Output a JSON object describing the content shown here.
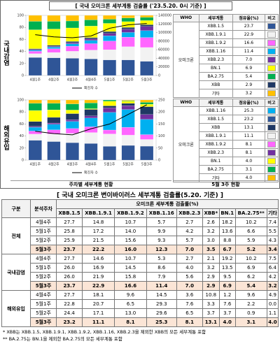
{
  "header": {
    "title": "[ 국내 오미크론 세부계통 검출률 ('23.5.20. 0시 기준) ]"
  },
  "panels": [
    {
      "label": "국내감염"
    },
    {
      "label": "해외유입"
    }
  ],
  "chart_data": [
    {
      "type": "bar",
      "stacked": true,
      "categories": [
        "4월1주",
        "4월2주",
        "4월3주",
        "4월4주",
        "5월1주",
        "5월2주",
        "5월3주"
      ],
      "ylim": [
        0,
        100
      ],
      "yticks": [
        0,
        20,
        40,
        60,
        80,
        100
      ],
      "y2lim": [
        0,
        140000
      ],
      "y2ticks": [
        0,
        20000,
        40000,
        60000,
        80000,
        100000,
        120000,
        140000
      ],
      "series": [
        {
          "color": "#2f5597",
          "values": [
            30.1,
            29.5,
            28.6,
            27.7,
            26.0,
            26.0,
            23.7
          ]
        },
        {
          "color": "#f2f2f2",
          "values": [
            6.2,
            8.8,
            11.7,
            14.6,
            16.9,
            21.9,
            22.9
          ]
        },
        {
          "color": "#ff66ff",
          "values": [
            4.1,
            6.3,
            8.5,
            10.7,
            14.5,
            15.8,
            16.6
          ]
        },
        {
          "color": "#00b0f0",
          "values": [
            1.8,
            2.6,
            3.9,
            5.3,
            8.6,
            7.9,
            11.4
          ]
        },
        {
          "color": "#7030a0",
          "values": [
            0.9,
            1.4,
            2.0,
            2.7,
            4.0,
            5.6,
            7.0
          ]
        },
        {
          "color": "#1f3864",
          "values": [
            1.5,
            1.8,
            2.0,
            2.1,
            3.2,
            2.9,
            2.9
          ]
        },
        {
          "color": "#ffff00",
          "values": [
            31.5,
            26.9,
            22.4,
            19.2,
            13.5,
            9.5,
            6.9
          ]
        },
        {
          "color": "#00b050",
          "values": [
            14.0,
            12.8,
            11.6,
            10.2,
            6.9,
            6.2,
            5.4
          ]
        },
        {
          "color": "#ffc000",
          "values": [
            9.9,
            9.9,
            9.3,
            7.5,
            6.4,
            4.2,
            3.2
          ]
        },
        {
          "type": "line",
          "axis": "y2",
          "name": "확진자 수",
          "color": "#000000",
          "values": [
            95000,
            90000,
            88000,
            92000,
            110000,
            118000,
            121000
          ]
        }
      ]
    },
    {
      "type": "bar",
      "stacked": true,
      "categories": [
        "4월1주",
        "4월2주",
        "4월3주",
        "4월4주",
        "5월1주",
        "5월2주",
        "5월3주"
      ],
      "ylim": [
        0,
        100
      ],
      "yticks": [
        0,
        20,
        40,
        60,
        80,
        100
      ],
      "y2lim": [
        0,
        250
      ],
      "y2ticks": [
        0,
        50,
        100,
        150,
        200,
        250
      ],
      "series": [
        {
          "color": "#2f5597",
          "values": [
            33.0,
            30.8,
            29.0,
            27.7,
            22.8,
            24.4,
            23.2
          ]
        },
        {
          "color": "#f2f2f2",
          "values": [
            10.2,
            12.5,
            15.3,
            18.1,
            20.7,
            17.1,
            11.1
          ]
        },
        {
          "color": "#ff66ff",
          "values": [
            5.1,
            7.0,
            8.2,
            9.6,
            6.5,
            13.0,
            8.1
          ]
        },
        {
          "color": "#00b0f0",
          "values": [
            6.3,
            9.1,
            11.8,
            14.5,
            29.3,
            29.6,
            25.3
          ]
        },
        {
          "color": "#7030a0",
          "values": [
            1.5,
            2.2,
            2.9,
            3.6,
            7.6,
            6.5,
            8.1
          ]
        },
        {
          "color": "#1f3864",
          "values": [
            8.0,
            9.4,
            10.1,
            10.8,
            3.3,
            3.7,
            13.1
          ]
        },
        {
          "color": "#ffff00",
          "values": [
            18.4,
            12.6,
            5.9,
            1.2,
            7.6,
            3.7,
            4.0
          ]
        },
        {
          "color": "#00b050",
          "values": [
            12.0,
            10.9,
            10.3,
            9.6,
            2.2,
            0.9,
            3.1
          ]
        },
        {
          "color": "#ffc000",
          "values": [
            5.5,
            5.5,
            6.5,
            4.9,
            0.0,
            1.1,
            4.0
          ]
        },
        {
          "type": "line",
          "axis": "y2",
          "name": "확진자 수",
          "color": "#000000",
          "values": [
            120,
            110,
            105,
            130,
            150,
            190,
            230
          ]
        }
      ]
    }
  ],
  "share_tables": [
    {
      "columns": [
        "WHO",
        "세부계통",
        "점유율(%)",
        "비고"
      ],
      "who": "오미크론",
      "rows": [
        {
          "lineage": "XBB.1.5",
          "share": "23.7",
          "color": "#2f5597"
        },
        {
          "lineage": "XBB.1.9.1",
          "share": "22.9",
          "color": "#f2f2f2"
        },
        {
          "lineage": "XBB.1.9.2",
          "share": "16.6",
          "color": "#ff66ff"
        },
        {
          "lineage": "XBB.1.16",
          "share": "11.4",
          "color": "#00b0f0"
        },
        {
          "lineage": "XBB.2.3",
          "share": "7.0",
          "color": "#7030a0"
        },
        {
          "lineage": "BN.1",
          "share": "6.9",
          "color": "#ffff00"
        },
        {
          "lineage": "BA.2.75",
          "share": "5.4",
          "color": "#00b050"
        },
        {
          "lineage": "XBB",
          "share": "2.9",
          "color": "#1f3864"
        },
        {
          "lineage": "기타",
          "share": "3.2",
          "color": "#ffc000"
        }
      ]
    },
    {
      "columns": [
        "WHO",
        "세부계통",
        "점유율(%)",
        "비고"
      ],
      "who": "오미크론",
      "rows": [
        {
          "lineage": "XBB.1.16",
          "share": "25.3",
          "color": "#00b0f0"
        },
        {
          "lineage": "XBB.1.5",
          "share": "23.2",
          "color": "#2f5597"
        },
        {
          "lineage": "XBB",
          "share": "13.1",
          "color": "#1f3864"
        },
        {
          "lineage": "XBB.1.9.1",
          "share": "11.1",
          "color": "#f2f2f2"
        },
        {
          "lineage": "XBB.1.9.2",
          "share": "8.1",
          "color": "#ff66ff"
        },
        {
          "lineage": "XBB.2.3",
          "share": "8.1",
          "color": "#7030a0"
        },
        {
          "lineage": "BN.1",
          "share": "4.0",
          "color": "#ffff00"
        },
        {
          "lineage": "BA.2.75",
          "share": "3.1",
          "color": "#00b050"
        },
        {
          "lineage": "기타",
          "share": "4.0",
          "color": "#ffc000"
        }
      ]
    }
  ],
  "captions": [
    "주차별 세부계통 현황",
    "5월 3주 현황"
  ],
  "table": {
    "title": "[ 국내 오미크론 변이바이러스 세부계통 검출률(5.20. 기준) ]",
    "group_header": "구분",
    "week_header": "분석주차",
    "span_header": "오미크론 세부계통 검출률(%)",
    "columns": [
      "XBB.1.5",
      "XBB.1.9.1",
      "XBB.1.9.2",
      "XBB.1.16",
      "XBB.2.3",
      "XBB*",
      "BN.1",
      "BA.2.75**",
      "기타"
    ],
    "groups": [
      {
        "name": "전체",
        "rows": [
          {
            "week": "4월4주",
            "values": [
              "27.7",
              "14.8",
              "10.7",
              "5.7",
              "2.7",
              "2.6",
              "18.2",
              "10.2",
              "7.4"
            ]
          },
          {
            "week": "5월1주",
            "values": [
              "25.8",
              "17.2",
              "14.0",
              "9.9",
              "4.2",
              "3.2",
              "13.6",
              "6.6",
              "5.5"
            ]
          },
          {
            "week": "5월2주",
            "values": [
              "25.9",
              "21.5",
              "15.6",
              "9.3",
              "5.7",
              "3.0",
              "8.8",
              "5.9",
              "4.3"
            ]
          },
          {
            "week": "5월3주",
            "highlight": true,
            "values": [
              "23.7",
              "22.2",
              "16.0",
              "12.3",
              "7.0",
              "3.5",
              "6.7",
              "5.2",
              "3.4"
            ]
          }
        ]
      },
      {
        "name": "국내감염",
        "rows": [
          {
            "week": "4월4주",
            "values": [
              "27.7",
              "14.6",
              "10.7",
              "5.3",
              "2.7",
              "2.1",
              "19.2",
              "10.2",
              "7.5"
            ]
          },
          {
            "week": "5월1주",
            "values": [
              "26.0",
              "16.9",
              "14.5",
              "8.6",
              "4.0",
              "3.2",
              "13.5",
              "6.9",
              "6.4"
            ]
          },
          {
            "week": "5월2주",
            "values": [
              "26.0",
              "21.9",
              "15.8",
              "7.9",
              "5.6",
              "2.9",
              "9.5",
              "6.2",
              "4.2"
            ]
          },
          {
            "week": "5월3주",
            "highlight": true,
            "values": [
              "23.7",
              "22.9",
              "16.6",
              "11.4",
              "7.0",
              "2.9",
              "6.9",
              "5.4",
              "3.2"
            ]
          }
        ]
      },
      {
        "name": "해외유입",
        "rows": [
          {
            "week": "4월4주",
            "values": [
              "27.7",
              "18.1",
              "9.6",
              "14.5",
              "3.6",
              "10.8",
              "1.2",
              "9.6",
              "4.9"
            ]
          },
          {
            "week": "5월1주",
            "values": [
              "22.8",
              "20.7",
              "6.5",
              "29.3",
              "7.6",
              "3.3",
              "7.6",
              "2.2",
              "0.0"
            ]
          },
          {
            "week": "5월2주",
            "values": [
              "24.4",
              "17.1",
              "13.0",
              "29.6",
              "6.5",
              "3.7",
              "3.7",
              "0.9",
              "1.1"
            ]
          },
          {
            "week": "5월3주",
            "highlight": true,
            "values": [
              "23.2",
              "11.1",
              "8.1",
              "25.3",
              "8.1",
              "13.1",
              "4.0",
              "3.1",
              "4.0"
            ]
          }
        ]
      }
    ]
  },
  "footnotes": [
    "* XBB는 XBB.1.5, XBB.1.9.1, XBB.1.9.2, XBB.1.16, XBB.2.3을 제외한 XBB의 모든 세부계통 포함",
    "** BA.2.75는 BN.1을 제외한 BA.2.75의 모든 세부계통 포함"
  ]
}
